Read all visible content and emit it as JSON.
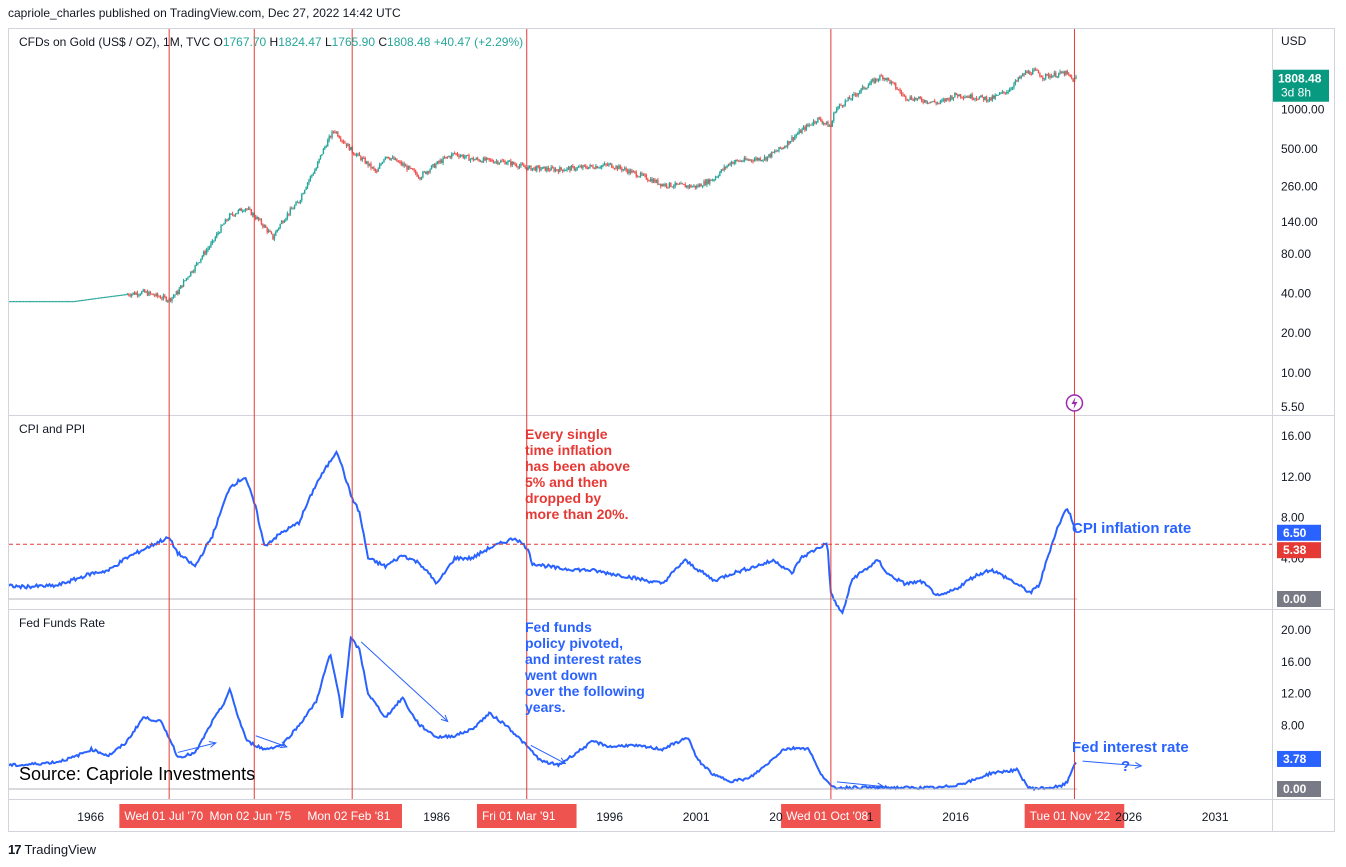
{
  "header": {
    "published": "capriole_charles published on TradingView.com, Dec 27, 2022 14:42 UTC"
  },
  "footer": {
    "brand": "TradingView"
  },
  "colors": {
    "up": "#26a69a",
    "down": "#ef5350",
    "line": "#2962ff",
    "event_line": "#e53935",
    "event_label_bg": "#ef5350",
    "price_badge": "#089981",
    "annot_red": "#e53935",
    "annot_blue": "#2962ff",
    "grid": "#e0e3eb",
    "axis_text": "#131722"
  },
  "chart_data": [
    {
      "type": "candlestick",
      "legend": {
        "symbol": "CFDs on Gold (US$ / OZ), 1M, TVC",
        "open_label": "O",
        "open": "1767.70",
        "high_label": "H",
        "high": "1824.47",
        "low_label": "L",
        "low": "1765.90",
        "close_label": "C",
        "close": "1808.48",
        "change": "+40.47 (+2.29%)"
      },
      "currency": "USD",
      "y_scale": "log",
      "ylim": [
        5.5,
        2300
      ],
      "y_ticks": [
        "1000.00",
        "500.00",
        "260.00",
        "140.00",
        "80.00",
        "40.00",
        "20.00",
        "10.00",
        "5.50"
      ],
      "last_price": {
        "value": "1808.48",
        "countdown": "3d 8h"
      },
      "series": [
        {
          "name": "Gold",
          "x": [
            1960,
            1965,
            1969,
            1970.5,
            1971,
            1972,
            1973,
            1974,
            1974.9,
            1976.5,
            1977,
            1978,
            1979,
            1980.05,
            1980.5,
            1981.1,
            1982.5,
            1983,
            1984,
            1985,
            1986,
            1987,
            1988,
            1990,
            1991.2,
            1993,
            1996,
            1999,
            2001,
            2002,
            2003,
            2005,
            2006,
            2008,
            2008.75,
            2009,
            2010,
            2011.7,
            2012,
            2013,
            2015,
            2016,
            2018,
            2019,
            2020,
            2020.6,
            2021,
            2022.3,
            2022.8,
            2022.99
          ],
          "values": [
            35,
            35,
            41,
            36,
            41,
            64,
            97,
            155,
            180,
            106,
            140,
            200,
            360,
            700,
            590,
            480,
            330,
            450,
            380,
            310,
            390,
            465,
            420,
            400,
            360,
            350,
            380,
            270,
            260,
            300,
            400,
            430,
            520,
            850,
            740,
            1000,
            1250,
            1800,
            1700,
            1250,
            1120,
            1300,
            1200,
            1400,
            1900,
            1950,
            1780,
            1900,
            1650,
            1808
          ]
        }
      ]
    },
    {
      "type": "line",
      "title": "CPI and PPI",
      "ylim": [
        0,
        16
      ],
      "y_ticks": [
        "16.00",
        "12.00",
        "8.00",
        "4.00",
        "0.00"
      ],
      "threshold": {
        "value": 5.38,
        "label": "5.38"
      },
      "last_value": "6.50",
      "zero_label": "0.00",
      "annotation": "Every single time inflation has been above 5% and then dropped by more than 20%.",
      "series_label": "CPI inflation rate",
      "series": [
        {
          "name": "CPI",
          "x": [
            1960,
            1962,
            1964,
            1966,
            1967,
            1968,
            1970,
            1970.5,
            1971,
            1972,
            1973,
            1974,
            1974.9,
            1975.5,
            1976,
            1977,
            1978,
            1979,
            1980.2,
            1981,
            1981.5,
            1982,
            1983,
            1984,
            1985,
            1986,
            1987,
            1988,
            1989,
            1990.5,
            1991.2,
            1991.5,
            1993,
            1995,
            1997,
            1999,
            2000.3,
            2002,
            2003,
            2004,
            2005.5,
            2006.5,
            2007,
            2008,
            2008.55,
            2008.75,
            2009.4,
            2010,
            2011.5,
            2012,
            2013,
            2014,
            2015,
            2016,
            2017,
            2018,
            2019,
            2020.3,
            2020.8,
            2021.3,
            2021.8,
            2022.4,
            2022.99
          ],
          "values": [
            1.4,
            1.2,
            1.3,
            2.5,
            2.8,
            4.0,
            5.7,
            6.0,
            4.5,
            3.2,
            6.2,
            11.0,
            12.0,
            9.0,
            5.2,
            6.5,
            7.5,
            11.3,
            14.6,
            10.2,
            8.5,
            4.0,
            3.2,
            4.3,
            3.5,
            1.5,
            4.0,
            4.0,
            5.0,
            6.0,
            5.0,
            3.5,
            3.0,
            2.8,
            2.2,
            1.5,
            3.8,
            1.8,
            2.5,
            3.0,
            3.8,
            2.5,
            4.0,
            5.0,
            5.5,
            0.5,
            -1.5,
            2.0,
            3.8,
            2.5,
            1.5,
            1.7,
            0.2,
            1.0,
            2.2,
            2.9,
            2.0,
            0.6,
            1.4,
            4.2,
            6.8,
            9.0,
            6.5
          ]
        }
      ]
    },
    {
      "type": "line",
      "title": "Fed Funds Rate",
      "ylim": [
        0,
        20
      ],
      "y_ticks": [
        "20.00",
        "16.00",
        "12.00",
        "8.00",
        "4.00",
        "0.00"
      ],
      "last_value": "3.78",
      "zero_label": "0.00",
      "annotation": "Fed funds policy pivoted, and interest rates went down over the following years.",
      "series_label": "Fed interest rate",
      "question_mark": "?",
      "source": "Source: Capriole Investments",
      "x_ticks": [
        "1966",
        "1986",
        "1996",
        "2001",
        "2016",
        "2031",
        "2026",
        "20",
        "1"
      ],
      "series": [
        {
          "name": "Fed Funds",
          "x": [
            1960,
            1962,
            1964,
            1965,
            1966,
            1967,
            1968,
            1969,
            1970,
            1970.5,
            1971,
            1972,
            1973,
            1973.6,
            1974,
            1974.5,
            1975,
            1976,
            1977,
            1978,
            1979,
            1979.8,
            1980.3,
            1980.5,
            1981,
            1981.5,
            1982,
            1983,
            1984,
            1984.5,
            1985,
            1986,
            1987,
            1988,
            1989,
            1990,
            1991,
            1992,
            1993,
            1994,
            1995,
            1996,
            1997,
            1998,
            1999,
            2000.5,
            2001,
            2002,
            2003,
            2004,
            2005,
            2006,
            2007,
            2007.5,
            2008,
            2008.8,
            2009,
            2010,
            2015,
            2016,
            2017,
            2018,
            2019.5,
            2020.2,
            2021,
            2022,
            2022.4,
            2022.7,
            2022.99
          ],
          "values": [
            3.0,
            3.0,
            3.4,
            4.0,
            5.0,
            4.2,
            5.8,
            9.0,
            8.5,
            6.5,
            4.0,
            4.5,
            8.5,
            10.5,
            12.5,
            9.0,
            6.0,
            5.0,
            5.5,
            8.0,
            11.0,
            17.0,
            12.0,
            9.0,
            19.0,
            17.5,
            12.0,
            9.0,
            11.5,
            9.5,
            8.0,
            6.5,
            6.7,
            7.5,
            9.5,
            8.0,
            5.8,
            3.5,
            3.0,
            4.5,
            6.0,
            5.3,
            5.5,
            5.3,
            5.0,
            6.5,
            3.8,
            1.7,
            1.0,
            1.3,
            3.0,
            5.0,
            5.2,
            5.0,
            2.5,
            0.2,
            0.15,
            0.2,
            0.15,
            0.5,
            1.1,
            2.0,
            2.4,
            0.1,
            0.1,
            0.3,
            0.8,
            2.5,
            3.78
          ]
        }
      ]
    }
  ],
  "events": [
    {
      "label": "Wed 01 Jul '70",
      "year": 1970.5
    },
    {
      "label": "Mon 02 Jun '75",
      "year": 1975.42
    },
    {
      "label": "Mon 02 Feb '81",
      "year": 1981.08
    },
    {
      "label": "Fri 01 Mar '91",
      "year": 1991.17
    },
    {
      "label": "Wed 01 Oct '08",
      "year": 2008.75
    },
    {
      "label": "Tue 01 Nov '22",
      "year": 2022.83
    }
  ]
}
